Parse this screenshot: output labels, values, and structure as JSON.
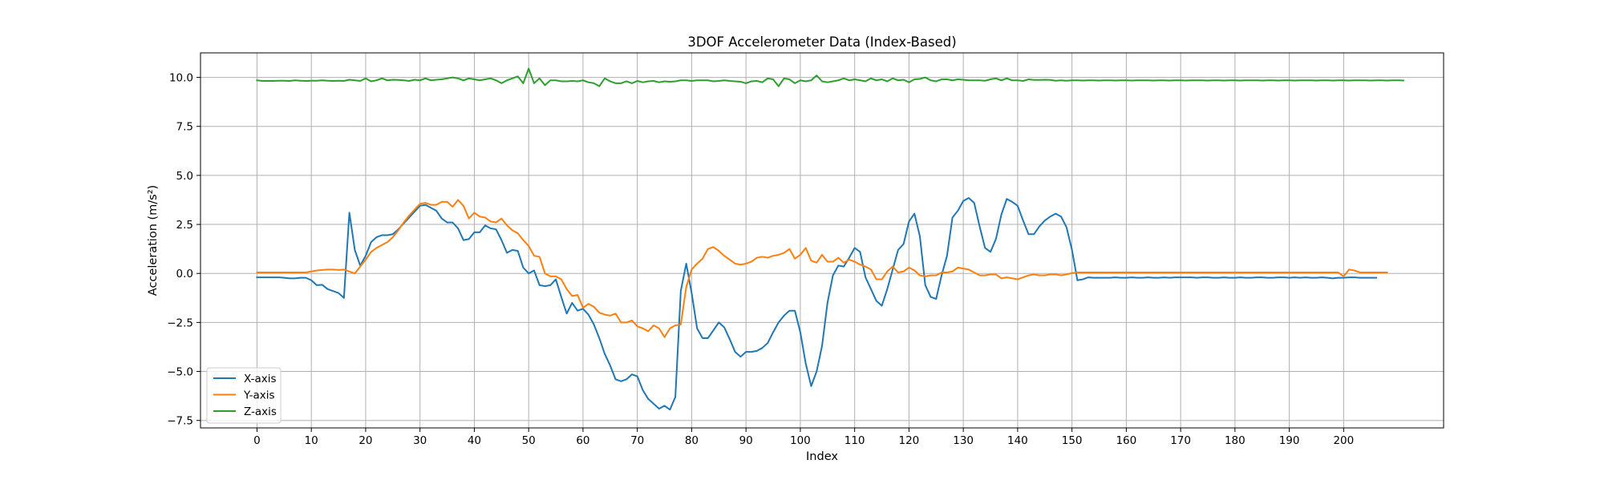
{
  "chart_data": {
    "type": "line",
    "title": "3DOF Accelerometer Data (Index-Based)",
    "xlabel": "Index",
    "ylabel": "Acceleration (m/s²)",
    "xlim": [
      -10.4,
      218.4
    ],
    "ylim": [
      -7.88,
      11.25
    ],
    "xticks": [
      0,
      10,
      20,
      30,
      40,
      50,
      60,
      70,
      80,
      90,
      100,
      110,
      120,
      130,
      140,
      150,
      160,
      170,
      180,
      190,
      200
    ],
    "yticks": [
      -7.5,
      -5.0,
      -2.5,
      0.0,
      2.5,
      5.0,
      7.5,
      10.0
    ],
    "ytick_labels": [
      "−7.5",
      "−5.0",
      "−2.5",
      "0.0",
      "2.5",
      "5.0",
      "7.5",
      "10.0"
    ],
    "grid": true,
    "legend_position": "lower-left",
    "x_start": 0,
    "x_step": 1,
    "series": [
      {
        "name": "X-axis",
        "color": "#1f77b4",
        "values": [
          -0.2,
          -0.2,
          -0.2,
          -0.2,
          -0.2,
          -0.22,
          -0.25,
          -0.25,
          -0.22,
          -0.22,
          -0.35,
          -0.6,
          -0.58,
          -0.8,
          -0.9,
          -1.0,
          -1.25,
          3.1,
          1.2,
          0.4,
          0.9,
          1.6,
          1.85,
          1.95,
          1.95,
          2.0,
          2.25,
          2.55,
          2.85,
          3.15,
          3.45,
          3.5,
          3.35,
          3.2,
          2.8,
          2.6,
          2.6,
          2.3,
          1.7,
          1.75,
          2.1,
          2.1,
          2.45,
          2.3,
          2.25,
          1.7,
          1.05,
          1.2,
          1.15,
          0.3,
          0.0,
          0.15,
          -0.6,
          -0.65,
          -0.6,
          -0.3,
          -1.2,
          -2.05,
          -1.5,
          -1.9,
          -1.8,
          -2.1,
          -2.6,
          -3.3,
          -4.1,
          -4.7,
          -5.4,
          -5.5,
          -5.4,
          -5.15,
          -5.25,
          -5.95,
          -6.4,
          -6.65,
          -6.9,
          -6.75,
          -6.95,
          -6.3,
          -0.9,
          0.5,
          -1.0,
          -2.8,
          -3.3,
          -3.3,
          -2.9,
          -2.5,
          -2.75,
          -3.35,
          -4.0,
          -4.25,
          -4.0,
          -4.0,
          -3.95,
          -3.8,
          -3.55,
          -3.0,
          -2.5,
          -2.15,
          -1.9,
          -1.9,
          -3.0,
          -4.6,
          -5.75,
          -5.0,
          -3.7,
          -1.5,
          -0.1,
          0.4,
          0.35,
          0.8,
          1.3,
          1.1,
          -0.2,
          -0.8,
          -1.4,
          -1.65,
          -0.8,
          0.2,
          1.2,
          1.5,
          2.65,
          3.05,
          1.9,
          -0.6,
          -1.2,
          -1.3,
          -0.1,
          0.9,
          2.85,
          3.2,
          3.7,
          3.85,
          3.6,
          2.4,
          1.3,
          1.1,
          1.75,
          3.0,
          3.8,
          3.65,
          3.45,
          2.7,
          2.0,
          2.0,
          2.4,
          2.7,
          2.9,
          3.05,
          2.9,
          2.35,
          1.2,
          -0.35,
          -0.3,
          -0.2,
          -0.22,
          -0.22,
          -0.22,
          -0.22,
          -0.2,
          -0.22,
          -0.22,
          -0.2,
          -0.22,
          -0.22,
          -0.2,
          -0.22,
          -0.22,
          -0.2,
          -0.22,
          -0.2,
          -0.2,
          -0.2,
          -0.2,
          -0.22,
          -0.2,
          -0.2,
          -0.22,
          -0.22,
          -0.2,
          -0.22,
          -0.22,
          -0.2,
          -0.22,
          -0.22,
          -0.2,
          -0.2,
          -0.22,
          -0.22,
          -0.2,
          -0.2,
          -0.22,
          -0.2,
          -0.22,
          -0.2,
          -0.22,
          -0.22,
          -0.2,
          -0.22,
          -0.25,
          -0.22,
          -0.22,
          -0.2,
          -0.2,
          -0.22,
          -0.22,
          -0.22,
          -0.22
        ]
      },
      {
        "name": "Y-axis",
        "color": "#ff7f0e",
        "values": [
          0.05,
          0.05,
          0.05,
          0.05,
          0.05,
          0.05,
          0.05,
          0.05,
          0.05,
          0.05,
          0.1,
          0.15,
          0.18,
          0.2,
          0.2,
          0.18,
          0.2,
          0.1,
          0.0,
          0.35,
          0.7,
          1.1,
          1.3,
          1.45,
          1.6,
          1.85,
          2.2,
          2.6,
          2.95,
          3.25,
          3.55,
          3.6,
          3.5,
          3.5,
          3.65,
          3.65,
          3.4,
          3.75,
          3.45,
          2.8,
          3.1,
          2.9,
          2.85,
          2.65,
          2.6,
          2.8,
          2.45,
          2.2,
          2.05,
          1.7,
          1.4,
          0.9,
          0.85,
          0.0,
          -0.15,
          -0.15,
          -0.3,
          -0.8,
          -1.15,
          -1.1,
          -1.75,
          -1.55,
          -1.7,
          -2.0,
          -2.1,
          -2.15,
          -2.05,
          -2.5,
          -2.5,
          -2.4,
          -2.7,
          -2.8,
          -2.95,
          -2.65,
          -2.8,
          -3.25,
          -2.8,
          -2.65,
          -2.6,
          -0.7,
          0.2,
          0.5,
          0.75,
          1.25,
          1.35,
          1.15,
          0.9,
          0.7,
          0.5,
          0.45,
          0.5,
          0.6,
          0.8,
          0.85,
          0.8,
          0.9,
          0.95,
          1.05,
          1.25,
          0.75,
          0.95,
          1.3,
          0.65,
          0.55,
          0.95,
          0.6,
          0.6,
          0.8,
          0.55,
          0.7,
          0.6,
          0.45,
          0.35,
          0.2,
          -0.3,
          -0.3,
          0.1,
          0.35,
          0.05,
          0.1,
          0.3,
          0.15,
          -0.1,
          -0.15,
          -0.1,
          -0.1,
          0.05,
          0.05,
          0.1,
          0.3,
          0.25,
          0.2,
          0.05,
          -0.1,
          -0.1,
          -0.05,
          -0.05,
          -0.25,
          -0.2,
          -0.25,
          -0.3,
          -0.2,
          -0.1,
          -0.05,
          -0.1,
          -0.1,
          -0.05,
          -0.05,
          -0.1,
          -0.05,
          0.02,
          0.05,
          0.05,
          0.05,
          0.05,
          0.05,
          0.05,
          0.05,
          0.05,
          0.05,
          0.05,
          0.05,
          0.05,
          0.05,
          0.05,
          0.05,
          0.05,
          0.05,
          0.05,
          0.05,
          0.05,
          0.05,
          0.05,
          0.05,
          0.05,
          0.05,
          0.05,
          0.05,
          0.05,
          0.05,
          0.05,
          0.05,
          0.05,
          0.05,
          0.05,
          0.05,
          0.05,
          0.05,
          0.05,
          0.05,
          0.05,
          0.05,
          0.05,
          0.05,
          0.05,
          0.05,
          0.05,
          0.05,
          0.05,
          0.05,
          -0.15,
          0.2,
          0.15,
          0.05,
          0.05,
          0.05,
          0.05,
          0.05,
          0.05
        ]
      },
      {
        "name": "Z-axis",
        "color": "#2ca02c",
        "values": [
          9.85,
          9.82,
          9.82,
          9.82,
          9.83,
          9.83,
          9.82,
          9.85,
          9.83,
          9.82,
          9.83,
          9.83,
          9.85,
          9.83,
          9.82,
          9.83,
          9.82,
          9.88,
          9.85,
          9.82,
          9.95,
          9.8,
          9.85,
          9.95,
          9.85,
          9.88,
          9.87,
          9.85,
          9.82,
          9.88,
          9.85,
          9.95,
          9.85,
          9.88,
          9.9,
          9.95,
          10.0,
          9.95,
          9.85,
          9.95,
          9.9,
          9.85,
          9.9,
          9.95,
          9.85,
          9.7,
          9.85,
          9.95,
          10.05,
          9.7,
          10.45,
          9.7,
          9.95,
          9.6,
          9.85,
          9.85,
          9.8,
          9.8,
          9.82,
          9.8,
          9.85,
          9.75,
          9.7,
          9.55,
          9.95,
          9.8,
          9.7,
          9.7,
          9.8,
          9.7,
          9.82,
          9.75,
          9.8,
          9.82,
          9.75,
          9.8,
          9.78,
          9.8,
          9.85,
          9.85,
          9.82,
          9.85,
          9.85,
          9.85,
          9.8,
          9.82,
          9.85,
          9.82,
          9.8,
          9.78,
          9.7,
          9.8,
          9.82,
          9.75,
          9.95,
          9.9,
          9.55,
          9.95,
          9.9,
          9.7,
          9.85,
          9.8,
          9.85,
          10.1,
          9.8,
          9.75,
          9.8,
          9.85,
          9.95,
          9.85,
          9.9,
          9.85,
          9.8,
          9.95,
          9.85,
          9.9,
          9.8,
          9.95,
          9.85,
          9.88,
          9.75,
          9.9,
          9.92,
          10.0,
          9.85,
          9.8,
          9.9,
          9.9,
          9.85,
          9.9,
          9.88,
          9.85,
          9.85,
          9.85,
          9.83,
          9.9,
          9.95,
          9.85,
          9.95,
          9.85,
          9.85,
          9.82,
          9.9,
          9.87,
          9.87,
          9.88,
          9.87,
          9.83,
          9.85,
          9.83,
          9.85,
          9.85,
          9.84,
          9.85,
          9.85,
          9.84,
          9.85,
          9.85,
          9.84,
          9.85,
          9.85,
          9.84,
          9.85,
          9.85,
          9.85,
          9.84,
          9.85,
          9.85,
          9.84,
          9.85,
          9.85,
          9.84,
          9.85,
          9.85,
          9.85,
          9.84,
          9.85,
          9.85,
          9.84,
          9.85,
          9.85,
          9.84,
          9.85,
          9.85,
          9.85,
          9.84,
          9.85,
          9.85,
          9.84,
          9.85,
          9.85,
          9.84,
          9.85,
          9.85,
          9.85,
          9.84,
          9.85,
          9.85,
          9.84,
          9.85,
          9.85,
          9.84,
          9.85,
          9.85,
          9.85,
          9.84,
          9.85,
          9.85,
          9.84,
          9.85,
          9.85,
          9.84
        ]
      }
    ]
  }
}
